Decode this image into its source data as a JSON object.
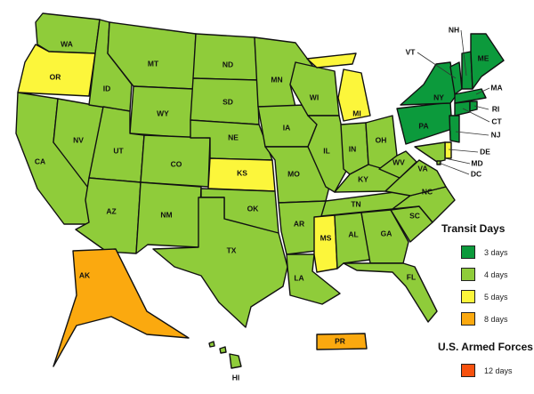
{
  "legend": {
    "title": "Transit Days",
    "items": [
      {
        "label": "3 days",
        "color": "#0c9a3c"
      },
      {
        "label": "4 days",
        "color": "#8fcc3a"
      },
      {
        "label": "5 days",
        "color": "#fcf63b"
      },
      {
        "label": "8 days",
        "color": "#fba90f"
      }
    ],
    "armed_forces_title": "U.S. Armed Forces",
    "armed_forces_item": {
      "label": "12 days",
      "color": "#f7510e"
    }
  },
  "states": [
    {
      "abbr": "WA",
      "days": 4
    },
    {
      "abbr": "OR",
      "days": 5
    },
    {
      "abbr": "CA",
      "days": 4
    },
    {
      "abbr": "NV",
      "days": 4
    },
    {
      "abbr": "ID",
      "days": 4
    },
    {
      "abbr": "MT",
      "days": 4
    },
    {
      "abbr": "WY",
      "days": 4
    },
    {
      "abbr": "UT",
      "days": 4
    },
    {
      "abbr": "AZ",
      "days": 4
    },
    {
      "abbr": "CO",
      "days": 4
    },
    {
      "abbr": "NM",
      "days": 4
    },
    {
      "abbr": "ND",
      "days": 4
    },
    {
      "abbr": "SD",
      "days": 4
    },
    {
      "abbr": "NE",
      "days": 4
    },
    {
      "abbr": "KS",
      "days": 5
    },
    {
      "abbr": "OK",
      "days": 4
    },
    {
      "abbr": "TX",
      "days": 4
    },
    {
      "abbr": "MN",
      "days": 4
    },
    {
      "abbr": "IA",
      "days": 4
    },
    {
      "abbr": "MO",
      "days": 4
    },
    {
      "abbr": "AR",
      "days": 4
    },
    {
      "abbr": "LA",
      "days": 4
    },
    {
      "abbr": "WI",
      "days": 4
    },
    {
      "abbr": "IL",
      "days": 4
    },
    {
      "abbr": "MI",
      "days": 5
    },
    {
      "abbr": "IN",
      "days": 4
    },
    {
      "abbr": "OH",
      "days": 4
    },
    {
      "abbr": "KY",
      "days": 4
    },
    {
      "abbr": "TN",
      "days": 4
    },
    {
      "abbr": "MS",
      "days": 5
    },
    {
      "abbr": "AL",
      "days": 4
    },
    {
      "abbr": "GA",
      "days": 4
    },
    {
      "abbr": "FL",
      "days": 4
    },
    {
      "abbr": "SC",
      "days": 4
    },
    {
      "abbr": "NC",
      "days": 4
    },
    {
      "abbr": "VA",
      "days": 4
    },
    {
      "abbr": "WV",
      "days": 4
    },
    {
      "abbr": "PA",
      "days": 3
    },
    {
      "abbr": "NY",
      "days": 3
    },
    {
      "abbr": "VT",
      "days": 3
    },
    {
      "abbr": "NH",
      "days": 3
    },
    {
      "abbr": "ME",
      "days": 3
    },
    {
      "abbr": "MA",
      "days": 3
    },
    {
      "abbr": "CT",
      "days": 3
    },
    {
      "abbr": "RI",
      "days": 3
    },
    {
      "abbr": "NJ",
      "days": 3
    },
    {
      "abbr": "DE",
      "days": 5
    },
    {
      "abbr": "MD",
      "days": 4
    },
    {
      "abbr": "DC",
      "days": 4
    },
    {
      "abbr": "AK",
      "days": 8
    },
    {
      "abbr": "HI",
      "days": 4
    },
    {
      "abbr": "PR",
      "days": 8
    }
  ]
}
